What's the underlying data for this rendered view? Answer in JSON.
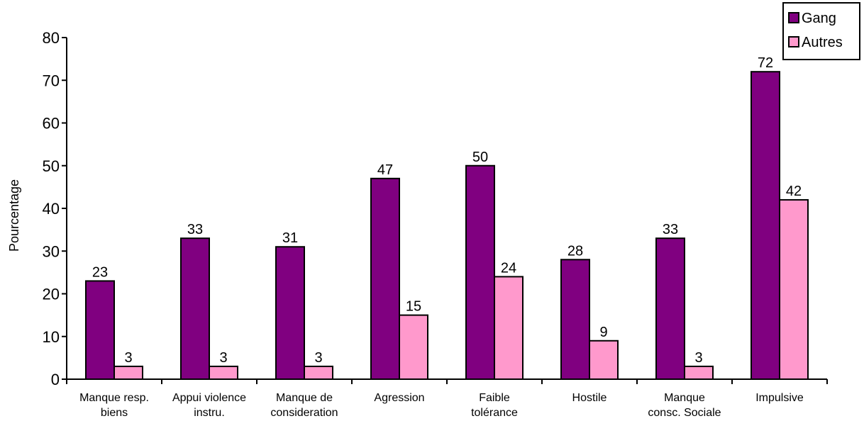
{
  "chart_data": {
    "type": "bar",
    "title": "",
    "xlabel": "",
    "ylabel": "Pourcentage",
    "ylim": [
      0,
      80
    ],
    "yticks": [
      0,
      10,
      20,
      30,
      40,
      50,
      60,
      70,
      80
    ],
    "grid": false,
    "legend_position": "top-right",
    "categories": [
      [
        "Manque resp.",
        "biens"
      ],
      [
        "Appui violence",
        "instru."
      ],
      [
        "Manque de",
        "consideration"
      ],
      [
        "Agression"
      ],
      [
        "Faible",
        "tolérance"
      ],
      [
        "Hostile"
      ],
      [
        "Manque",
        "consc. Sociale"
      ],
      [
        "Impulsive"
      ]
    ],
    "series": [
      {
        "name": "Gang",
        "color": "#800080",
        "values": [
          23,
          33,
          31,
          47,
          50,
          28,
          33,
          72
        ]
      },
      {
        "name": "Autres",
        "color": "#ff99cc",
        "values": [
          3,
          3,
          3,
          15,
          24,
          9,
          3,
          42
        ]
      }
    ]
  }
}
